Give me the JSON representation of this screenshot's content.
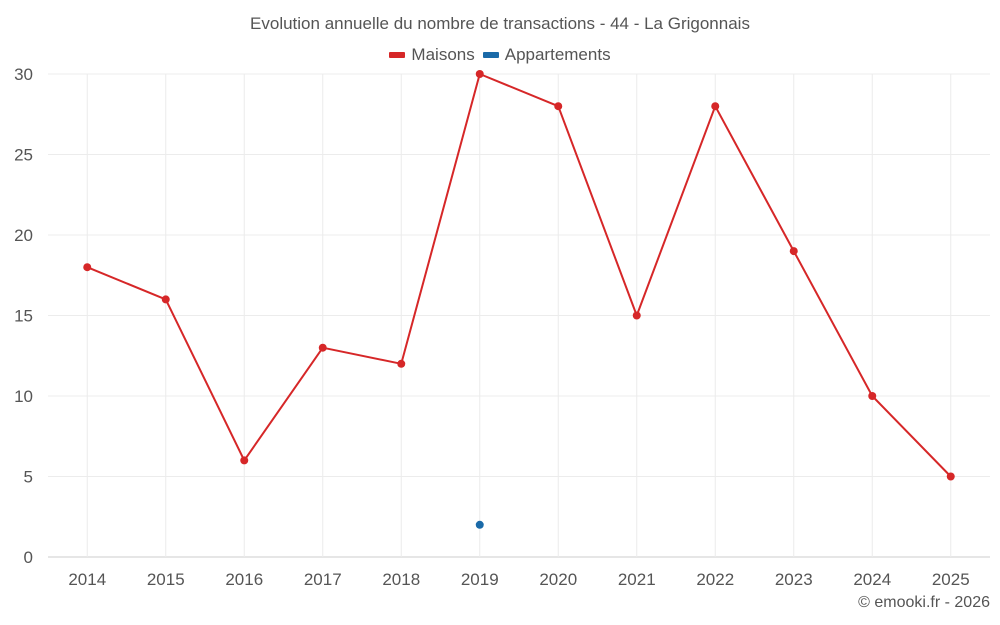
{
  "chart_data": {
    "type": "line",
    "title": "Evolution annuelle du nombre de transactions - 44 - La Grigonnais",
    "categories": [
      "2014",
      "2015",
      "2016",
      "2017",
      "2018",
      "2019",
      "2020",
      "2021",
      "2022",
      "2023",
      "2024",
      "2025"
    ],
    "series": [
      {
        "name": "Maisons",
        "color": "#d62728",
        "values": [
          18,
          16,
          6,
          13,
          12,
          30,
          28,
          15,
          28,
          19,
          10,
          5
        ]
      },
      {
        "name": "Appartements",
        "color": "#1a6aa8",
        "values": [
          null,
          null,
          null,
          null,
          null,
          2,
          null,
          null,
          null,
          null,
          null,
          null
        ]
      }
    ],
    "ylim": [
      0,
      30
    ],
    "yticks": [
      0,
      5,
      10,
      15,
      20,
      25,
      30
    ],
    "grid": true,
    "legend_position": "top-center",
    "xlabel": "",
    "ylabel": ""
  },
  "footer": {
    "copyright": "© emooki.fr - 2026"
  }
}
